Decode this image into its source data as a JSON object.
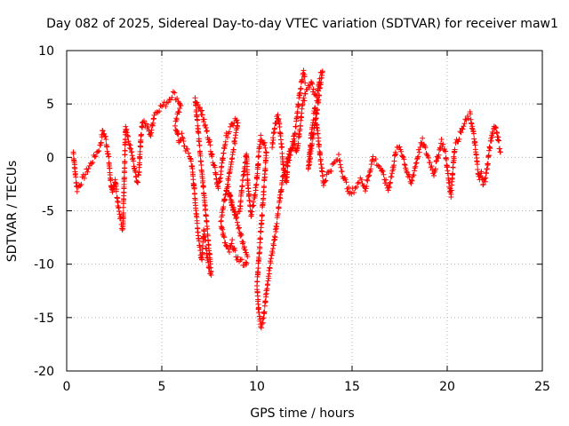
{
  "chart_data": {
    "type": "scatter",
    "title": "Day 082 of 2025, Sidereal Day-to-day VTEC variation (SDTVAR) for receiver maw1",
    "xlabel": "GPS time / hours",
    "ylabel": "SDTVAR / TECUs",
    "xlim": [
      0,
      25
    ],
    "ylim": [
      -20,
      10
    ],
    "xticks": [
      0,
      5,
      10,
      15,
      20,
      25
    ],
    "yticks": [
      -20,
      -15,
      -10,
      -5,
      0,
      5,
      10
    ],
    "grid": true,
    "marker": "+",
    "color": "#ff0000",
    "series": [
      {
        "name": "maw1",
        "trace": [
          [
            0.35,
            0.5
          ],
          [
            0.45,
            -1.5
          ],
          [
            0.55,
            -3.0
          ],
          [
            1.75,
            1.0
          ],
          [
            1.9,
            2.5
          ],
          [
            2.05,
            1.8
          ],
          [
            2.2,
            0.0
          ],
          [
            2.3,
            -2.0
          ],
          [
            2.4,
            -3.5
          ],
          [
            2.55,
            -2.0
          ],
          [
            2.7,
            -4.5
          ],
          [
            2.8,
            -5.5
          ],
          [
            2.95,
            -6.8
          ],
          [
            3.1,
            3.0
          ],
          [
            3.25,
            1.5
          ],
          [
            3.4,
            0.5
          ],
          [
            3.55,
            -1.0
          ],
          [
            3.7,
            -2.5
          ],
          [
            3.8,
            -1.5
          ],
          [
            3.9,
            2.0
          ],
          [
            4.0,
            3.5
          ],
          [
            4.2,
            3.0
          ],
          [
            4.4,
            2.0
          ],
          [
            4.6,
            4.0
          ],
          [
            4.8,
            4.5
          ],
          [
            5.0,
            4.8
          ],
          [
            5.2,
            5.0
          ],
          [
            5.4,
            5.5
          ],
          [
            5.6,
            6.0
          ],
          [
            5.8,
            5.5
          ],
          [
            6.0,
            5.0
          ],
          [
            5.7,
            3.0
          ],
          [
            5.8,
            2.5
          ],
          [
            5.9,
            1.5
          ],
          [
            6.05,
            2.0
          ],
          [
            6.2,
            1.0
          ],
          [
            6.35,
            0.5
          ],
          [
            6.5,
            0.0
          ],
          [
            6.6,
            -1.0
          ],
          [
            6.7,
            -3.0
          ],
          [
            6.8,
            -5.0
          ],
          [
            6.9,
            -7.0
          ],
          [
            7.0,
            -8.5
          ],
          [
            7.1,
            -9.5
          ],
          [
            7.2,
            -7.0
          ],
          [
            7.3,
            -8.0
          ],
          [
            7.4,
            -9.5
          ],
          [
            7.5,
            -10.5
          ],
          [
            7.6,
            -10.8
          ],
          [
            6.75,
            5.5
          ],
          [
            6.9,
            5.0
          ],
          [
            7.05,
            4.5
          ],
          [
            7.2,
            3.5
          ],
          [
            7.35,
            2.5
          ],
          [
            7.5,
            1.5
          ],
          [
            7.65,
            0.0
          ],
          [
            7.8,
            -1.0
          ],
          [
            7.95,
            -3.0
          ],
          [
            8.1,
            -1.5
          ],
          [
            8.25,
            0.5
          ],
          [
            8.4,
            2.0
          ],
          [
            8.55,
            2.5
          ],
          [
            8.7,
            3.0
          ],
          [
            8.85,
            3.5
          ],
          [
            9.0,
            3.2
          ],
          [
            8.1,
            -6.0
          ],
          [
            8.25,
            -7.5
          ],
          [
            8.4,
            -8.5
          ],
          [
            8.55,
            -8.8
          ],
          [
            8.7,
            -8.0
          ],
          [
            8.85,
            -9.0
          ],
          [
            9.0,
            -9.5
          ],
          [
            9.2,
            -9.8
          ],
          [
            9.4,
            -10.0
          ],
          [
            9.5,
            -9.5
          ],
          [
            8.5,
            -3.0
          ],
          [
            8.7,
            -4.5
          ],
          [
            8.9,
            -5.5
          ],
          [
            9.1,
            -5.0
          ],
          [
            9.2,
            -3.0
          ],
          [
            9.35,
            -1.0
          ],
          [
            9.45,
            0.5
          ],
          [
            9.5,
            -2.0
          ],
          [
            9.6,
            -4.0
          ],
          [
            9.7,
            -5.5
          ],
          [
            9.85,
            -4.0
          ],
          [
            10.0,
            -2.0
          ],
          [
            10.1,
            0.5
          ],
          [
            10.2,
            2.0
          ],
          [
            10.35,
            1.5
          ],
          [
            10.5,
            0.5
          ],
          [
            10.0,
            -12.0
          ],
          [
            10.1,
            -14.5
          ],
          [
            10.2,
            -16.0
          ],
          [
            10.35,
            -15.0
          ],
          [
            10.5,
            -12.5
          ],
          [
            10.7,
            -10.0
          ],
          [
            10.9,
            -8.0
          ],
          [
            11.05,
            -6.0
          ],
          [
            11.2,
            -4.0
          ],
          [
            11.35,
            -2.0
          ],
          [
            11.5,
            -1.0
          ],
          [
            11.7,
            0.0
          ],
          [
            11.9,
            1.5
          ],
          [
            12.05,
            3.0
          ],
          [
            12.15,
            4.5
          ],
          [
            12.25,
            6.0
          ],
          [
            12.35,
            7.0
          ],
          [
            12.45,
            8.0
          ],
          [
            12.55,
            7.0
          ],
          [
            10.8,
            1.0
          ],
          [
            10.95,
            3.0
          ],
          [
            11.1,
            4.0
          ],
          [
            11.25,
            2.0
          ],
          [
            11.4,
            -1.0
          ],
          [
            11.55,
            -2.5
          ],
          [
            11.65,
            0.0
          ],
          [
            11.8,
            1.0
          ],
          [
            11.95,
            1.5
          ],
          [
            12.1,
            0.5
          ],
          [
            12.25,
            2.5
          ],
          [
            12.4,
            5.0
          ],
          [
            12.55,
            6.0
          ],
          [
            12.7,
            6.5
          ],
          [
            12.85,
            7.0
          ],
          [
            13.0,
            6.0
          ],
          [
            13.15,
            5.5
          ],
          [
            13.3,
            7.5
          ],
          [
            13.45,
            8.0
          ],
          [
            12.7,
            -1.0
          ],
          [
            12.8,
            1.0
          ],
          [
            12.9,
            3.0
          ],
          [
            13.05,
            4.5
          ],
          [
            13.5,
            -2.5
          ],
          [
            13.7,
            -1.5
          ],
          [
            13.9,
            -1.0
          ],
          [
            14.1,
            -0.5
          ],
          [
            14.3,
            0.0
          ],
          [
            14.5,
            -1.5
          ],
          [
            14.7,
            -2.5
          ],
          [
            14.9,
            -3.5
          ],
          [
            15.1,
            -3.0
          ],
          [
            15.3,
            -2.5
          ],
          [
            15.5,
            -2.0
          ],
          [
            15.7,
            -3.0
          ],
          [
            15.9,
            -1.5
          ],
          [
            16.1,
            0.0
          ],
          [
            16.3,
            -0.5
          ],
          [
            16.5,
            -1.0
          ],
          [
            16.7,
            -2.0
          ],
          [
            16.9,
            -3.0
          ],
          [
            17.1,
            -1.5
          ],
          [
            17.3,
            0.5
          ],
          [
            17.5,
            1.0
          ],
          [
            17.7,
            0.0
          ],
          [
            17.9,
            -1.5
          ],
          [
            18.1,
            -2.5
          ],
          [
            18.3,
            -1.0
          ],
          [
            18.5,
            0.5
          ],
          [
            18.7,
            1.5
          ],
          [
            18.9,
            0.5
          ],
          [
            19.1,
            -0.5
          ],
          [
            19.3,
            -1.5
          ],
          [
            19.5,
            0.0
          ],
          [
            19.7,
            1.5
          ],
          [
            19.9,
            0.5
          ],
          [
            20.1,
            -2.5
          ],
          [
            20.2,
            -3.5
          ],
          [
            20.3,
            -1.0
          ],
          [
            20.4,
            1.0
          ],
          [
            21.0,
            3.5
          ],
          [
            21.2,
            4.0
          ],
          [
            21.4,
            2.0
          ],
          [
            21.5,
            0.5
          ],
          [
            21.6,
            -1.0
          ],
          [
            21.7,
            -2.0
          ],
          [
            21.8,
            -1.5
          ],
          [
            21.9,
            -2.5
          ],
          [
            22.0,
            -2.0
          ],
          [
            22.1,
            -1.0
          ],
          [
            22.2,
            0.5
          ],
          [
            22.3,
            1.5
          ],
          [
            22.4,
            2.5
          ],
          [
            22.5,
            3.0
          ],
          [
            22.6,
            2.5
          ],
          [
            22.7,
            1.5
          ],
          [
            22.8,
            0.5
          ]
        ]
      }
    ]
  }
}
